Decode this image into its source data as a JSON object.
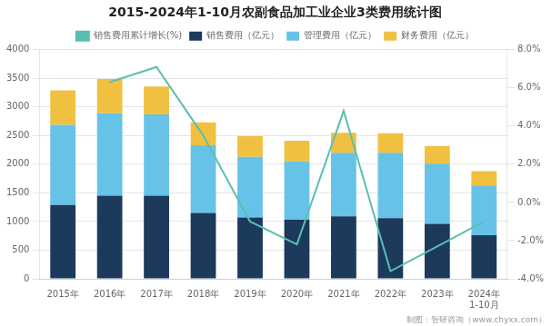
{
  "chart_data": {
    "type": "bar",
    "title": "2015-2024年1-10月农副食品加工业企业3类费用统计图",
    "categories": [
      "2015年",
      "2016年",
      "2017年",
      "2018年",
      "2019年",
      "2020年",
      "2021年",
      "2022年",
      "2023年",
      "2024年\n1-10月"
    ],
    "stacked": true,
    "series": [
      {
        "name": "销售费用（亿元）",
        "color": "#1b3a5c",
        "values": [
          1290,
          1450,
          1450,
          1150,
          1070,
          1030,
          1090,
          1060,
          960,
          760
        ]
      },
      {
        "name": "管理费用（亿元）",
        "color": "#67c2e8",
        "values": [
          1400,
          1440,
          1420,
          1180,
          1060,
          1020,
          1110,
          1140,
          1050,
          870
        ]
      },
      {
        "name": "财务费用（亿元）",
        "color": "#f0c040",
        "values": [
          600,
          600,
          490,
          400,
          360,
          360,
          350,
          340,
          310,
          250
        ]
      },
      {
        "name": "销售费用累计增长(%)",
        "type": "line",
        "axis": "y2",
        "color": "#5abfb0",
        "values": [
          null,
          6.3,
          7.1,
          3.5,
          -1.0,
          -2.2,
          4.8,
          -3.6,
          -2.3,
          -1.0
        ]
      }
    ],
    "ylim": [
      0,
      4000
    ],
    "yticks": [
      0,
      500,
      1000,
      1500,
      2000,
      2500,
      3000,
      3500,
      4000
    ],
    "y2lim": [
      -4.0,
      8.0
    ],
    "y2ticks": [
      {
        "value": -4.0,
        "label": "-4.0%"
      },
      {
        "value": -2.0,
        "label": "-2.0%"
      },
      {
        "value": 0.0,
        "label": "0.0%"
      },
      {
        "value": 2.0,
        "label": "2.0%"
      },
      {
        "value": 4.0,
        "label": "4.0%"
      },
      {
        "value": 6.0,
        "label": "6.0%"
      },
      {
        "value": 8.0,
        "label": "8.0%"
      }
    ],
    "grid": true,
    "legend": "top",
    "annotations": [
      "制图：智研咨询（www.chyxx.com）"
    ]
  }
}
